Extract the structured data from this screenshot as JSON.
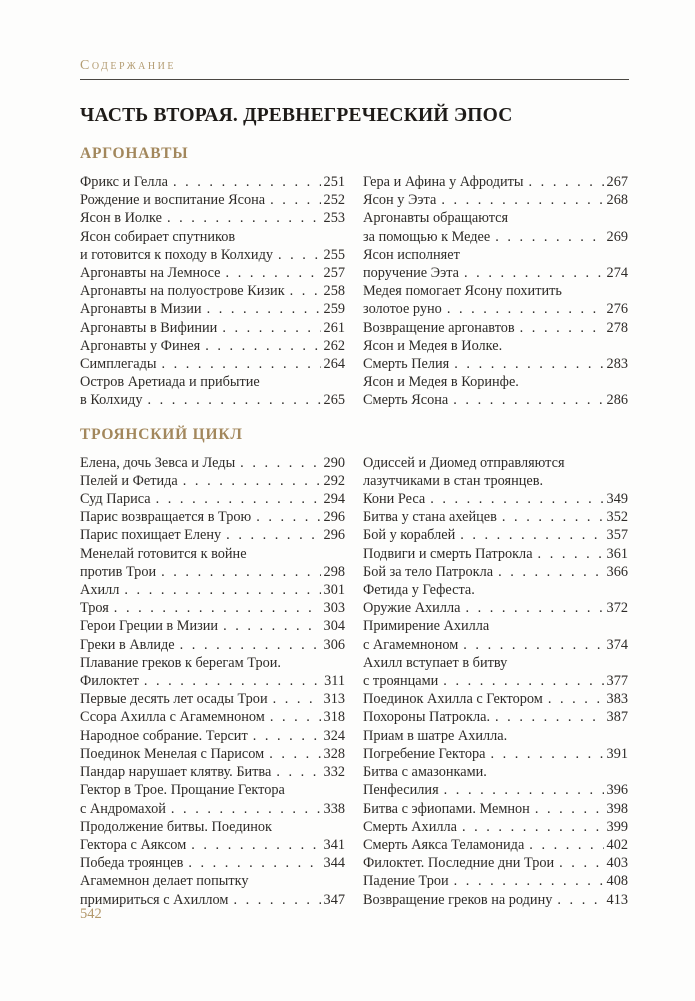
{
  "page": {
    "running_head": "Содержание",
    "title": "ЧАСТЬ ВТОРАЯ. ДРЕВНЕГРЕЧЕСКИЙ ЭПОС",
    "page_number": "542",
    "colors": {
      "accent_gold": "#a2875c",
      "running_head_gold": "#b39c72",
      "body_text": "#2e2b28",
      "rule": "#4a4742",
      "background": "#fdfdfc"
    }
  },
  "sections": [
    {
      "heading": "АРГОНАВТЫ",
      "columns": [
        [
          {
            "lines": [
              "Фрикс и Гелла"
            ],
            "page": "251"
          },
          {
            "lines": [
              "Рождение и воспитание Ясона"
            ],
            "page": "252"
          },
          {
            "lines": [
              "Ясон в Иолке"
            ],
            "page": "253"
          },
          {
            "lines": [
              "Ясон собирает спутников",
              "и готовится к походу в Колхиду"
            ],
            "page": "255"
          },
          {
            "lines": [
              "Аргонавты на Лемносе"
            ],
            "page": "257"
          },
          {
            "lines": [
              "Аргонавты на полуострове Кизик"
            ],
            "page": "258"
          },
          {
            "lines": [
              "Аргонавты в Мизии"
            ],
            "page": "259"
          },
          {
            "lines": [
              "Аргонавты в Вифинии"
            ],
            "page": "261"
          },
          {
            "lines": [
              "Аргонавты у Финея"
            ],
            "page": "262"
          },
          {
            "lines": [
              "Симплегады"
            ],
            "page": "264"
          },
          {
            "lines": [
              "Остров Аретиада и прибытие",
              "в Колхиду"
            ],
            "page": "265"
          }
        ],
        [
          {
            "lines": [
              "Гера и Афина у Афродиты"
            ],
            "page": "267"
          },
          {
            "lines": [
              "Ясон у Ээта"
            ],
            "page": "268"
          },
          {
            "lines": [
              "Аргонавты обращаются",
              "за помощью к Медее"
            ],
            "page": "269"
          },
          {
            "lines": [
              "Ясон исполняет",
              "поручение Ээта"
            ],
            "page": "274"
          },
          {
            "lines": [
              "Медея помогает Ясону похитить",
              "золотое руно"
            ],
            "page": "276"
          },
          {
            "lines": [
              "Возвращение аргонавтов"
            ],
            "page": "278"
          },
          {
            "lines": [
              "Ясон и Медея в Иолке.",
              "Смерть Пелия"
            ],
            "page": "283"
          },
          {
            "lines": [
              "Ясон и Медея в Коринфе.",
              "Смерть Ясона"
            ],
            "page": "286"
          }
        ]
      ]
    },
    {
      "heading": "ТРОЯНСКИЙ ЦИКЛ",
      "columns": [
        [
          {
            "lines": [
              "Елена, дочь Зевса и Леды"
            ],
            "page": "290"
          },
          {
            "lines": [
              "Пелей и Фетида"
            ],
            "page": "292"
          },
          {
            "lines": [
              "Суд Париса"
            ],
            "page": "294"
          },
          {
            "lines": [
              "Парис возвращается в Трою"
            ],
            "page": "296"
          },
          {
            "lines": [
              "Парис похищает Елену"
            ],
            "page": "296"
          },
          {
            "lines": [
              "Менелай готовится к войне",
              "против Трои"
            ],
            "page": "298"
          },
          {
            "lines": [
              "Ахилл"
            ],
            "page": "301"
          },
          {
            "lines": [
              "Троя"
            ],
            "page": "303"
          },
          {
            "lines": [
              "Герои Греции в Мизии"
            ],
            "page": "304"
          },
          {
            "lines": [
              "Греки в Авлиде"
            ],
            "page": "306"
          },
          {
            "lines": [
              "Плавание греков к берегам Трои.",
              "Филоктет"
            ],
            "page": "311"
          },
          {
            "lines": [
              "Первые десять лет осады Трои"
            ],
            "page": "313"
          },
          {
            "lines": [
              "Ссора Ахилла с Агамемноном"
            ],
            "page": "318"
          },
          {
            "lines": [
              "Народное собрание. Терсит"
            ],
            "page": "324"
          },
          {
            "lines": [
              "Поединок Менелая с Парисом"
            ],
            "page": "328"
          },
          {
            "lines": [
              "Пандар нарушает клятву. Битва"
            ],
            "page": "332"
          },
          {
            "lines": [
              "Гектор в Трое. Прощание Гектора",
              "с Андромахой"
            ],
            "page": "338"
          },
          {
            "lines": [
              "Продолжение битвы. Поединок",
              "Гектора с Аяксом"
            ],
            "page": "341"
          },
          {
            "lines": [
              "Победа троянцев"
            ],
            "page": "344"
          },
          {
            "lines": [
              "Агамемнон делает попытку",
              "примириться с Ахиллом"
            ],
            "page": "347"
          }
        ],
        [
          {
            "lines": [
              "Одиссей и Диомед отправляются",
              "лазутчиками в стан троянцев.",
              "Кони Реса"
            ],
            "page": "349"
          },
          {
            "lines": [
              "Битва у стана ахейцев"
            ],
            "page": "352"
          },
          {
            "lines": [
              "Бой у кораблей"
            ],
            "page": "357"
          },
          {
            "lines": [
              "Подвиги и смерть Патрокла"
            ],
            "page": "361"
          },
          {
            "lines": [
              "Бой за тело Патрокла"
            ],
            "page": "366"
          },
          {
            "lines": [
              "Фетида у Гефеста.",
              "Оружие Ахилла"
            ],
            "page": "372"
          },
          {
            "lines": [
              "Примирение Ахилла",
              "с Агамемноном"
            ],
            "page": "374"
          },
          {
            "lines": [
              "Ахилл вступает в битву",
              "с троянцами"
            ],
            "page": "377"
          },
          {
            "lines": [
              "Поединок Ахилла с Гектором"
            ],
            "page": "383"
          },
          {
            "lines": [
              "Похороны Патрокла."
            ],
            "page": "387"
          },
          {
            "lines": [
              "Приам в шатре Ахилла.",
              "Погребение Гектора"
            ],
            "page": "391"
          },
          {
            "lines": [
              "Битва с амазонками.",
              "Пенфесилия"
            ],
            "page": "396"
          },
          {
            "lines": [
              "Битва с эфиопами. Мемнон"
            ],
            "page": "398"
          },
          {
            "lines": [
              "Смерть Ахилла"
            ],
            "page": "399"
          },
          {
            "lines": [
              "Смерть Аякса Теламонида"
            ],
            "page": "402"
          },
          {
            "lines": [
              "Филоктет. Последние дни Трои"
            ],
            "page": "403"
          },
          {
            "lines": [
              "Падение Трои"
            ],
            "page": "408"
          },
          {
            "lines": [
              "Возвращение греков на родину"
            ],
            "page": "413"
          }
        ]
      ]
    }
  ]
}
